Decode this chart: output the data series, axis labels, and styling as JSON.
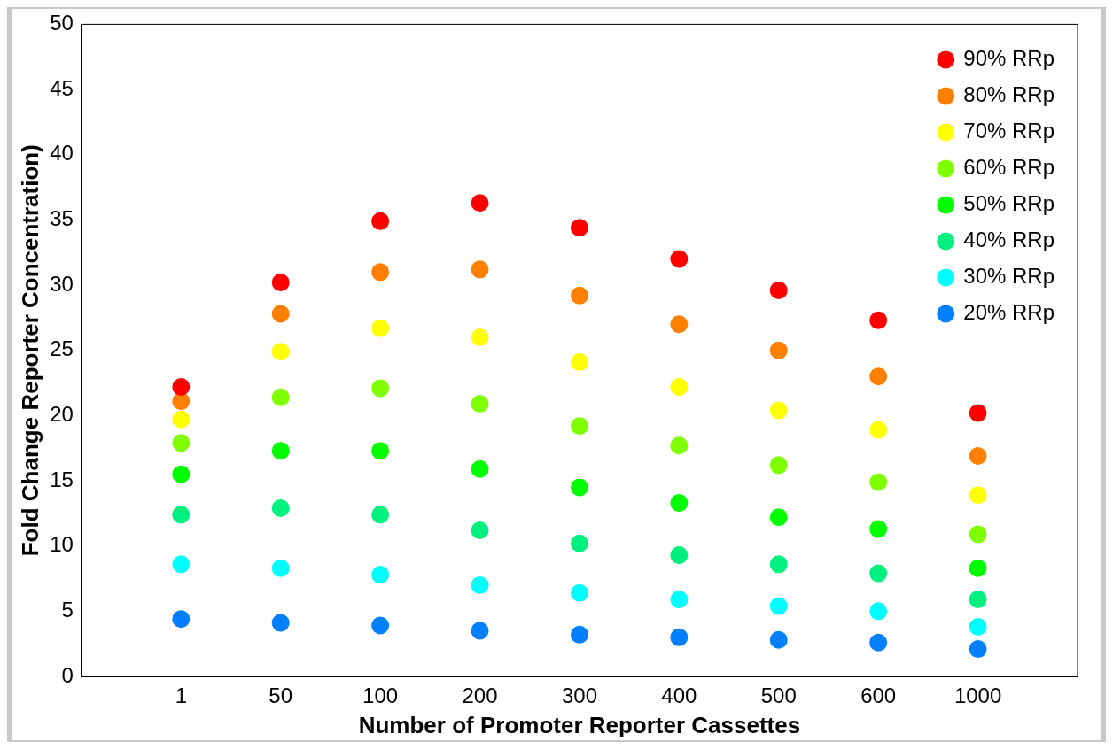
{
  "chart_data": {
    "type": "scatter",
    "xlabel": "Number of Promoter Reporter Cassettes",
    "ylabel": "Fold Change Reporter Concentration)",
    "categories": [
      "1",
      "50",
      "100",
      "200",
      "300",
      "400",
      "500",
      "600",
      "1000"
    ],
    "ylim": [
      0,
      50
    ],
    "yticks": [
      0,
      5,
      10,
      15,
      20,
      25,
      30,
      35,
      40,
      45,
      50
    ],
    "grid": false,
    "legend": "top right",
    "marker": "circle",
    "series": [
      {
        "name": "90% RRp",
        "color": "#ff0000",
        "values": [
          22.2,
          30.2,
          34.9,
          36.3,
          34.4,
          32.0,
          29.6,
          27.3,
          20.2
        ]
      },
      {
        "name": "80% RRp",
        "color": "#ff8000",
        "values": [
          21.1,
          27.8,
          31.0,
          31.2,
          29.2,
          27.0,
          25.0,
          23.0,
          16.9
        ]
      },
      {
        "name": "70% RRp",
        "color": "#ffff00",
        "values": [
          19.7,
          24.9,
          26.7,
          26.0,
          24.1,
          22.2,
          20.4,
          18.9,
          13.9
        ]
      },
      {
        "name": "60% RRp",
        "color": "#80ff00",
        "values": [
          17.9,
          21.4,
          22.1,
          20.9,
          19.2,
          17.7,
          16.2,
          14.9,
          10.9
        ]
      },
      {
        "name": "50% RRp",
        "color": "#00ff00",
        "values": [
          15.5,
          17.3,
          17.3,
          15.9,
          14.5,
          13.3,
          12.2,
          11.3,
          8.3
        ]
      },
      {
        "name": "40% RRp",
        "color": "#00f080",
        "values": [
          12.4,
          12.9,
          12.4,
          11.2,
          10.2,
          9.3,
          8.6,
          7.9,
          5.9
        ]
      },
      {
        "name": "30% RRp",
        "color": "#00ffff",
        "values": [
          8.6,
          8.3,
          7.8,
          7.0,
          6.4,
          5.9,
          5.4,
          5.0,
          3.8
        ]
      },
      {
        "name": "20% RRp",
        "color": "#0080ff",
        "values": [
          4.4,
          4.1,
          3.9,
          3.5,
          3.2,
          3.0,
          2.8,
          2.6,
          2.1
        ]
      }
    ]
  }
}
